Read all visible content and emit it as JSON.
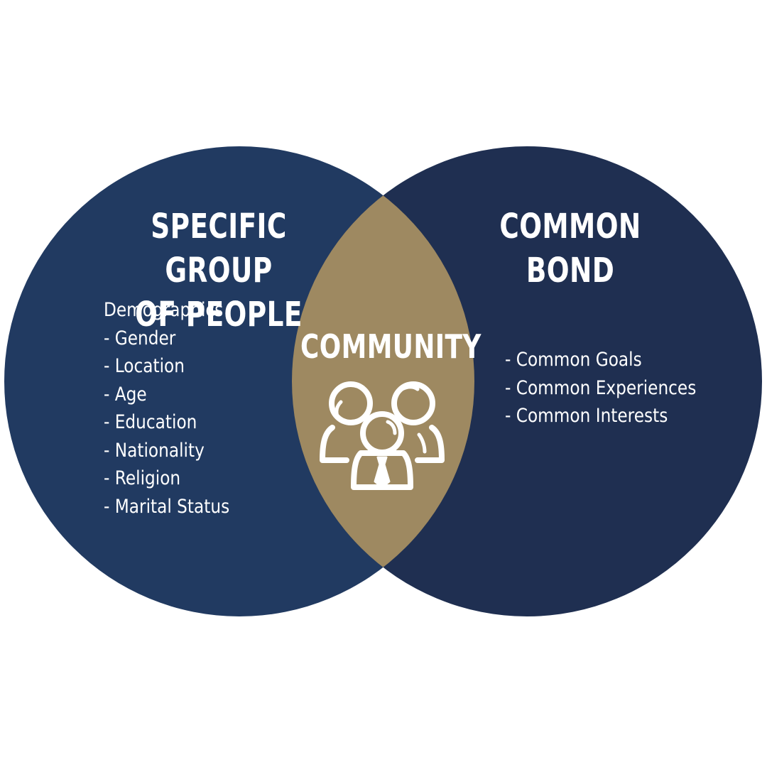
{
  "colors": {
    "background": "#ffffff",
    "left_circle": "#213a61",
    "right_circle": "#1f2f51",
    "intersection": "#9e8961",
    "text": "#ffffff"
  },
  "left": {
    "title_line1": "SPECIFIC GROUP",
    "title_line2": "OF PEOPLE",
    "items": [
      "Demographics",
      "- Gender",
      "- Location",
      "- Age",
      "- Education",
      "- Nationality",
      "- Religion",
      "- Marital Status"
    ]
  },
  "right": {
    "title_line1": "COMMON",
    "title_line2": "BOND",
    "items": [
      "- Common Goals",
      "- Common Experiences",
      "- Common Interests"
    ]
  },
  "center": {
    "title": "COMMUNITY",
    "icon": "people-group-icon"
  }
}
